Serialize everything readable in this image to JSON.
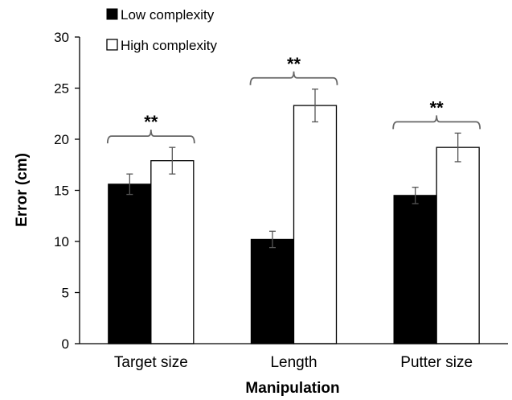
{
  "chart_data": {
    "type": "bar",
    "title": "",
    "xlabel": "Manipulation",
    "ylabel": "Error (cm)",
    "ylim": [
      0,
      30
    ],
    "yticks": [
      0,
      5,
      10,
      15,
      20,
      25,
      30
    ],
    "categories": [
      "Target size",
      "Length",
      "Putter size"
    ],
    "series": [
      {
        "name": "Low complexity",
        "values": [
          15.6,
          10.2,
          14.5
        ],
        "errors": [
          1.0,
          0.8,
          0.8
        ],
        "color": "#000000"
      },
      {
        "name": "High complexity",
        "values": [
          17.9,
          23.3,
          19.2
        ],
        "errors": [
          1.3,
          1.6,
          1.4
        ],
        "color": "#ffffff"
      }
    ],
    "annotations": [
      "**",
      "**",
      "**"
    ],
    "legend_position": "top-left",
    "grid": false
  }
}
